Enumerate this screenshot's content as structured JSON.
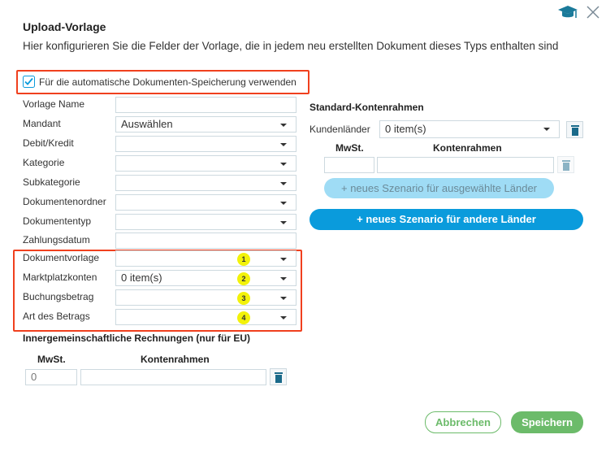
{
  "header": {
    "title": "Upload-Vorlage",
    "subtitle": "Hier konfigurieren Sie die Felder der Vorlage, die in jedem neu erstellten Dokument dieses Typs enthalten sind",
    "help_icon": "graduation-cap-icon",
    "close_icon": "close-icon"
  },
  "auto_save": {
    "label": "Für die automatische Dokumenten-Speicherung verwenden",
    "checked": true
  },
  "fields": [
    {
      "label": "Vorlage Name",
      "value": "",
      "type": "text"
    },
    {
      "label": "Mandant",
      "value": "Auswählen",
      "type": "select"
    },
    {
      "label": "Debit/Kredit",
      "value": "",
      "type": "select"
    },
    {
      "label": "Kategorie",
      "value": "",
      "type": "select"
    },
    {
      "label": "Subkategorie",
      "value": "",
      "type": "select"
    },
    {
      "label": "Dokumentenordner",
      "value": "",
      "type": "select"
    },
    {
      "label": "Dokumententyp",
      "value": "",
      "type": "select"
    },
    {
      "label": "Zahlungsdatum",
      "value": "",
      "type": "text"
    },
    {
      "label": "Dokumentvorlage",
      "value": "",
      "type": "select",
      "badge": "1"
    },
    {
      "label": "Marktplatzkonten",
      "value": "0 item(s)",
      "type": "select",
      "badge": "2"
    },
    {
      "label": "Buchungsbetrag",
      "value": "",
      "type": "select",
      "badge": "3"
    },
    {
      "label": "Art des Betrags",
      "value": "",
      "type": "select",
      "badge": "4"
    }
  ],
  "eu": {
    "title": "Innergemeinschaftliche Rechnungen (nur für EU)",
    "mwst_header": "MwSt.",
    "konten_header": "Kontenrahmen",
    "mwst_value": "0",
    "konten_value": ""
  },
  "standard": {
    "title": "Standard-Kontenrahmen",
    "kunden_label": "Kundenländer",
    "kunden_value": "0 item(s)",
    "mwst_header": "MwSt.",
    "konten_header": "Kontenrahmen",
    "mwst_value": "",
    "konten_value": "",
    "btn_selected": "+ neues Szenario für ausgewählte Länder",
    "btn_other": "+ neues Szenario für andere Länder"
  },
  "footer": {
    "cancel": "Abbrechen",
    "save": "Speichern"
  },
  "colors": {
    "accent": "#0a9bdc",
    "green": "#6cbb6a",
    "highlight": "#f0401e",
    "badge": "#f2f20a"
  }
}
